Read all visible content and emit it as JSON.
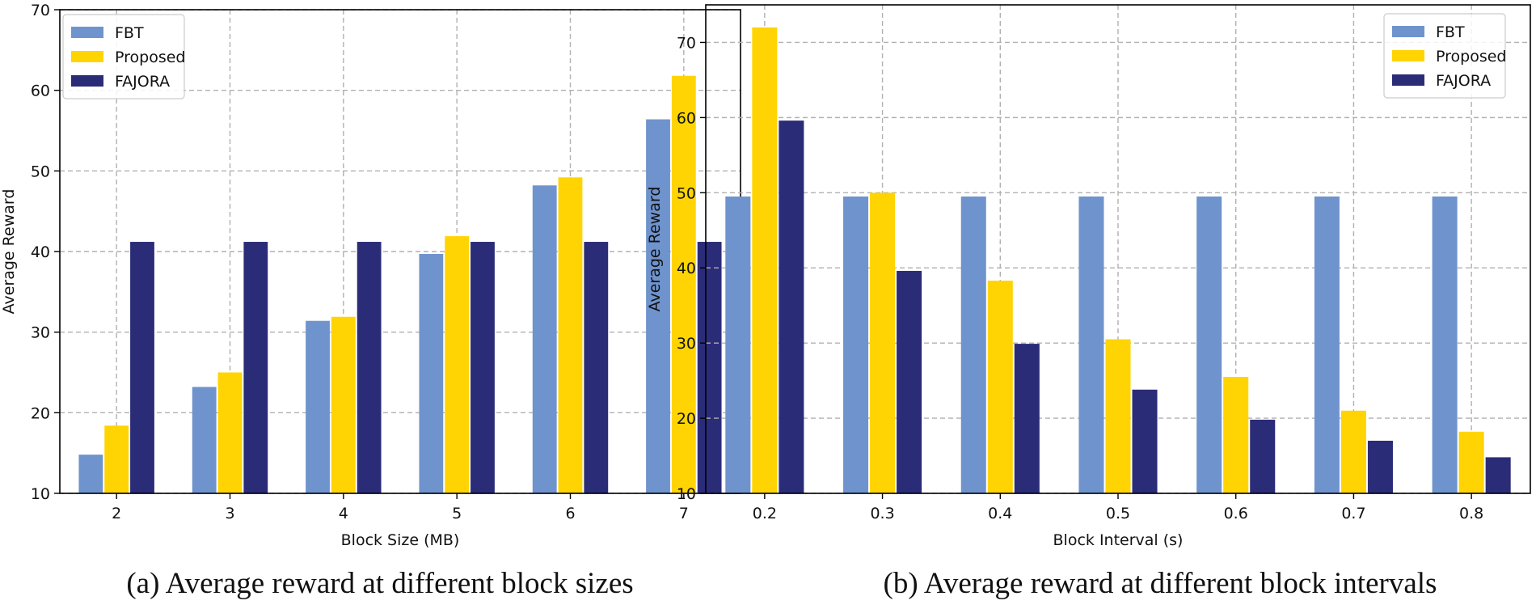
{
  "colors": {
    "FBT": "#6f93cd",
    "Proposed": "#ffd402",
    "FAJORA": "#2b2c78",
    "grid": "#b0b0b0",
    "axis": "#000000"
  },
  "captions": {
    "a": "(a) Average reward at different block sizes",
    "b": "(b) Average reward at different block intervals"
  },
  "chart_data": [
    {
      "type": "bar",
      "title": "",
      "xlabel": "Block Size (MB)",
      "ylabel": "Average Reward",
      "categories": [
        "2",
        "3",
        "4",
        "5",
        "6",
        "7"
      ],
      "ylim": [
        10,
        70
      ],
      "yticks": [
        10,
        20,
        30,
        40,
        50,
        60,
        70
      ],
      "grid": true,
      "legend": "top-left",
      "series": [
        {
          "name": "FBT",
          "values": [
            14.8,
            23.2,
            31.4,
            39.7,
            48.2,
            56.4
          ]
        },
        {
          "name": "Proposed",
          "values": [
            18.4,
            25.0,
            31.9,
            41.9,
            49.2,
            61.8
          ]
        },
        {
          "name": "FAJORA",
          "values": [
            41.2,
            41.2,
            41.2,
            41.2,
            41.2,
            41.2
          ]
        }
      ]
    },
    {
      "type": "bar",
      "title": "",
      "xlabel": "Block Interval (s)",
      "ylabel": "Average Reward",
      "categories": [
        "0.2",
        "0.3",
        "0.4",
        "0.5",
        "0.6",
        "0.7",
        "0.8"
      ],
      "ylim": [
        10,
        75
      ],
      "yticks": [
        10,
        20,
        30,
        40,
        50,
        60,
        70
      ],
      "grid": true,
      "legend": "top-right",
      "series": [
        {
          "name": "FBT",
          "values": [
            49.5,
            49.5,
            49.5,
            49.5,
            49.5,
            49.5,
            49.5
          ]
        },
        {
          "name": "Proposed",
          "values": [
            72.0,
            50.0,
            38.3,
            30.5,
            25.5,
            21.0,
            18.2
          ]
        },
        {
          "name": "FAJORA",
          "values": [
            59.6,
            39.6,
            29.9,
            23.8,
            19.8,
            17.0,
            14.8
          ]
        }
      ]
    }
  ]
}
